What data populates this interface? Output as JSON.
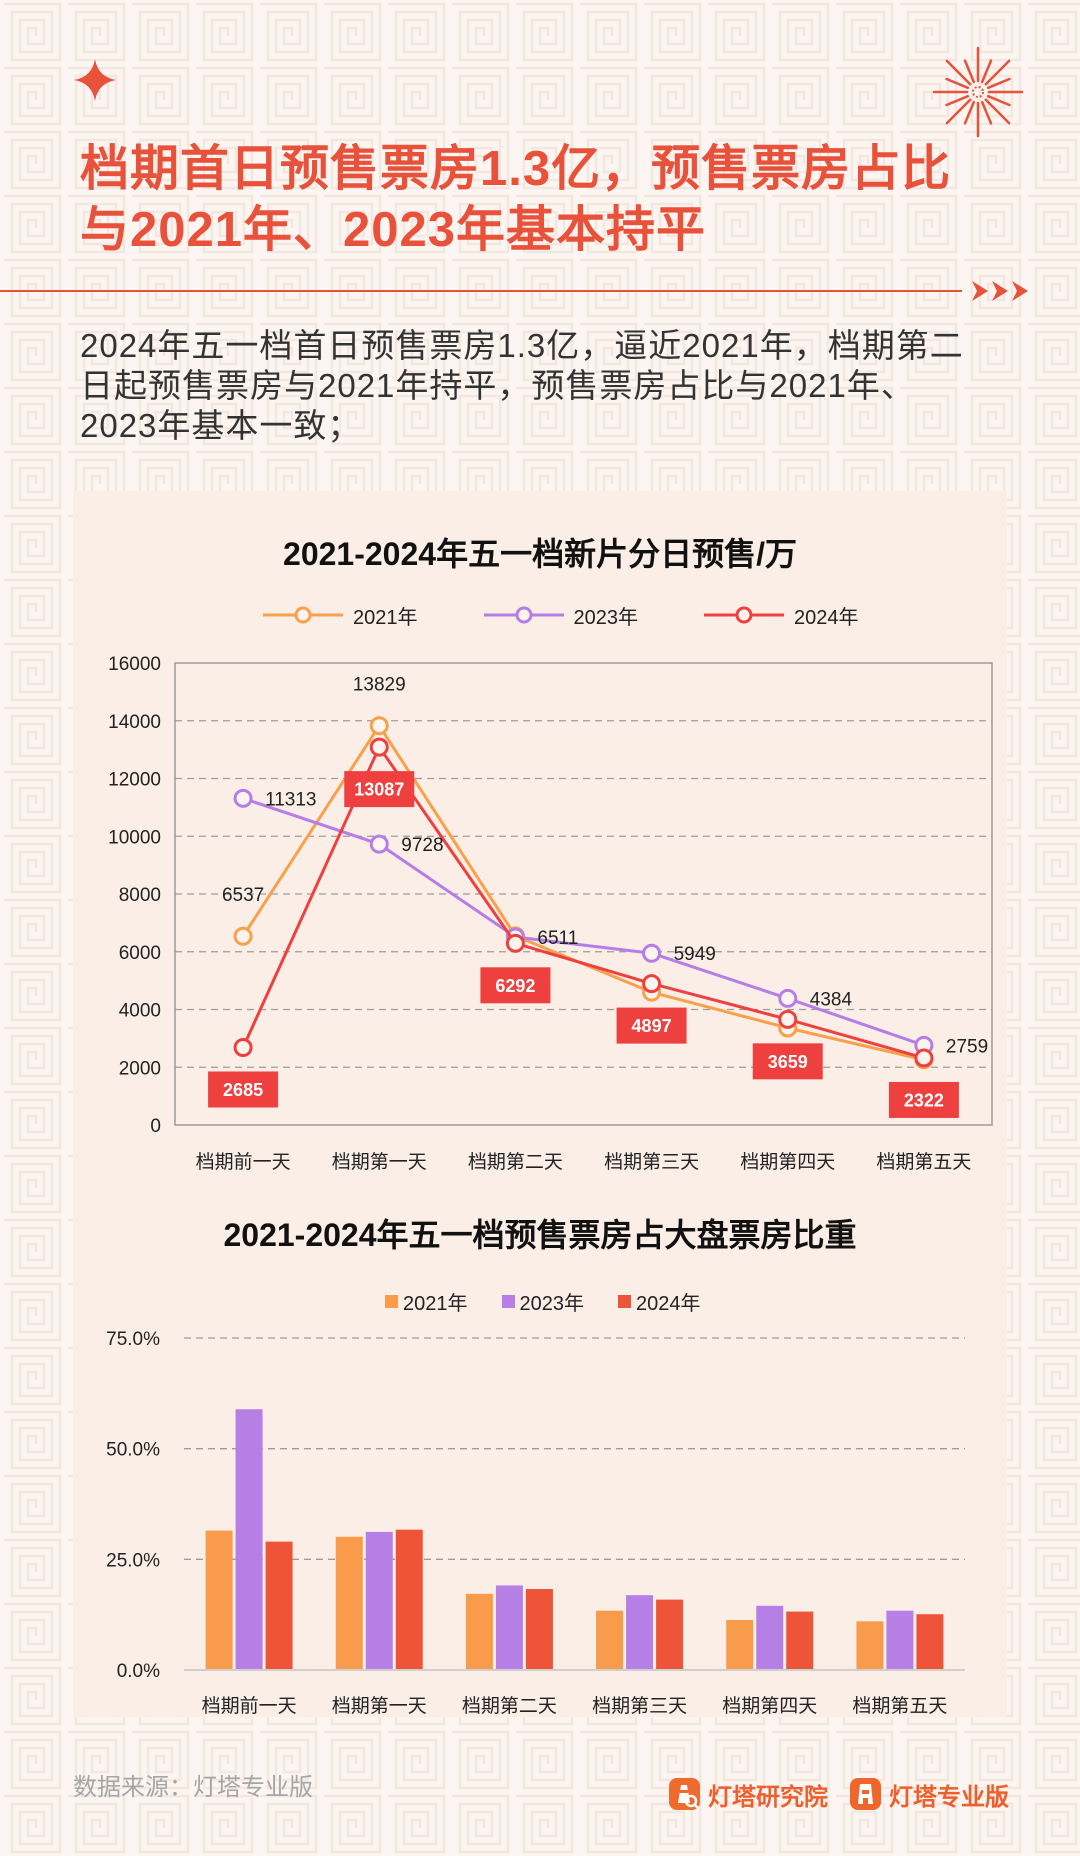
{
  "theme": {
    "accent": "#e8513a",
    "background": "#fcf5f1",
    "panel": "#fbeee6"
  },
  "decor": {
    "top_left": "four-point-star-icon",
    "top_right": "firework-icon",
    "divider_end": "triple-arrow-icon"
  },
  "header": {
    "title_lines": [
      "档期首日预售票房1.3亿，预售票房占比",
      "与2021年、2023年基本持平"
    ]
  },
  "summary": {
    "lines": [
      "2024年五一档首日预售票房1.3亿，逼近2021年，档期第二",
      "日起预售票房与2021年持平，预售票房占比与2021年、",
      "2023年基本一致；"
    ]
  },
  "chart_data": [
    {
      "type": "line",
      "title": "2021-2024年五一档新片分日预售/万",
      "categories": [
        "档期前一天",
        "档期第一天",
        "档期第二天",
        "档期第三天",
        "档期第四天",
        "档期第五天"
      ],
      "ylim": [
        0,
        16000
      ],
      "yticks": [
        0,
        2000,
        4000,
        6000,
        8000,
        10000,
        12000,
        14000,
        16000
      ],
      "grid": true,
      "legend_position": "top",
      "series": [
        {
          "name": "2021年",
          "color": "#f8a04a",
          "values": [
            6537,
            13829,
            6550,
            4600,
            3360,
            2260
          ],
          "data_labels": [
            "6537",
            "13829",
            null,
            null,
            null,
            null
          ]
        },
        {
          "name": "2023年",
          "color": "#b47ee6",
          "values": [
            11313,
            9728,
            6511,
            5949,
            4384,
            2759
          ],
          "data_labels": [
            "11313",
            "9728",
            "6511",
            "5949",
            "4384",
            "2759"
          ]
        },
        {
          "name": "2024年",
          "color": "#ef4040",
          "values": [
            2685,
            13087,
            6292,
            4897,
            3659,
            2322
          ],
          "data_labels": [
            "2685",
            "13087",
            "6292",
            "4897",
            "3659",
            "2322"
          ]
        }
      ]
    },
    {
      "type": "bar",
      "title": "2021-2024年五一档预售票房占大盘票房比重",
      "categories": [
        "档期前一天",
        "档期第一天",
        "档期第二天",
        "档期第三天",
        "档期第四天",
        "档期第五天"
      ],
      "ylim": [
        0,
        75
      ],
      "yticks": [
        0,
        25,
        50,
        75
      ],
      "ytick_labels": [
        "0.0%",
        "25.0%",
        "50.0%",
        "75.0%"
      ],
      "grid": true,
      "legend_position": "top",
      "series": [
        {
          "name": "2021年",
          "color": "#f89c4b",
          "values": [
            31.5,
            30.1,
            17.2,
            13.4,
            11.3,
            11.0
          ]
        },
        {
          "name": "2023年",
          "color": "#b67fe6",
          "values": [
            58.9,
            31.2,
            19.1,
            16.9,
            14.5,
            13.4
          ]
        },
        {
          "name": "2024年",
          "color": "#ee5437",
          "values": [
            29.0,
            31.7,
            18.3,
            15.9,
            13.2,
            12.6
          ]
        }
      ]
    }
  ],
  "footer": {
    "source": "数据来源：灯塔专业版",
    "brands": [
      {
        "name": "灯塔研究院",
        "icon": "lighthouse-research-icon"
      },
      {
        "name": "灯塔专业版",
        "icon": "lighthouse-pro-icon"
      }
    ]
  }
}
